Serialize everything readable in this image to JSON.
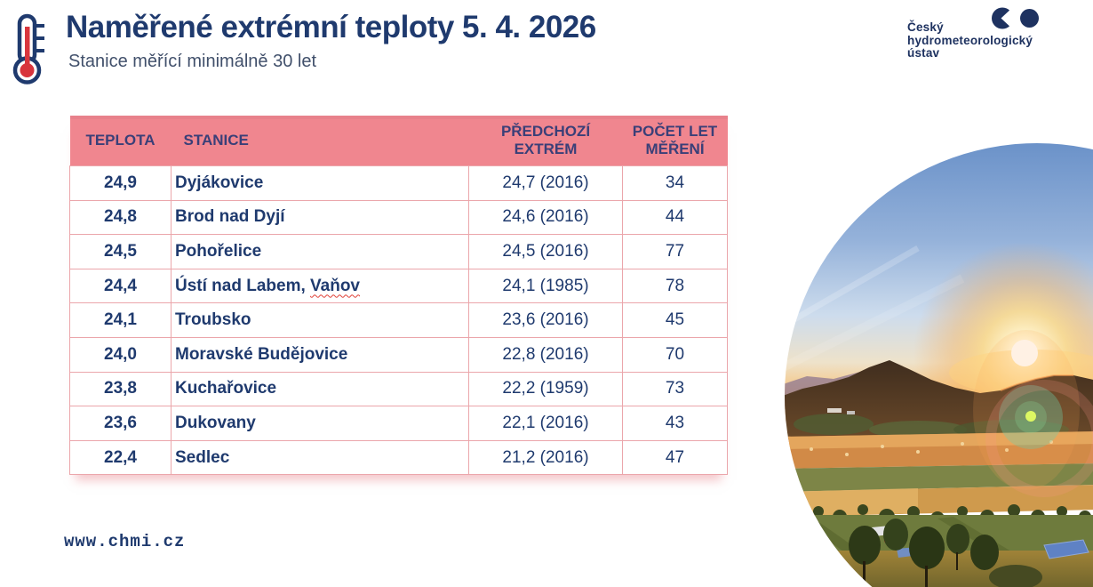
{
  "header": {
    "title": "Naměřené extrémní teploty 5. 4. 2026",
    "subtitle": "Stanice měřící minimálně 30 let"
  },
  "logo": {
    "line1": "Český",
    "line2": "hydrometeorologický",
    "line3": "ústav"
  },
  "icons": {
    "thermometer": "thermometer-icon",
    "logo_mark": "chmi-logo-mark-icon"
  },
  "colors": {
    "brand_navy": "#1f3a6e",
    "table_header_pink": "#f0868f",
    "table_border_pink": "#eba6ab",
    "thermometer_red": "#d8353d",
    "spellcheck_red": "#e04036"
  },
  "chart_data": {
    "type": "table",
    "title": "Naměřené extrémní teploty 5. 4. 2026",
    "subtitle": "Stanice měřící minimálně 30 let",
    "columns": [
      "TEPLOTA",
      "STANICE",
      "PŘEDCHOZÍ EXTRÉM",
      "POČET LET MĚŘENÍ"
    ],
    "rows": [
      {
        "teplota": "24,9",
        "stanice": "Dyjákovice",
        "predchozi_extrem": "24,7 (2016)",
        "pocet_let_mereni": "34"
      },
      {
        "teplota": "24,8",
        "stanice": "Brod nad Dyjí",
        "predchozi_extrem": "24,6 (2016)",
        "pocet_let_mereni": "44"
      },
      {
        "teplota": "24,5",
        "stanice": "Pohořelice",
        "predchozi_extrem": "24,5 (2016)",
        "pocet_let_mereni": "77"
      },
      {
        "teplota": "24,4",
        "stanice": "Ústí nad Labem, Vaňov",
        "squiggle": "Vaňov",
        "predchozi_extrem": "24,1 (1985)",
        "pocet_let_mereni": "78"
      },
      {
        "teplota": "24,1",
        "stanice": "Troubsko",
        "predchozi_extrem": "23,6 (2016)",
        "pocet_let_mereni": "45"
      },
      {
        "teplota": "24,0",
        "stanice": "Moravské Budějovice",
        "predchozi_extrem": "22,8 (2016)",
        "pocet_let_mereni": "70"
      },
      {
        "teplota": "23,8",
        "stanice": "Kuchařovice",
        "predchozi_extrem": "22,2 (1959)",
        "pocet_let_mereni": "73"
      },
      {
        "teplota": "23,6",
        "stanice": "Dukovany",
        "predchozi_extrem": "22,1 (2016)",
        "pocet_let_mereni": "43"
      },
      {
        "teplota": "22,4",
        "stanice": "Sedlec",
        "predchozi_extrem": "21,2 (2016)",
        "pocet_let_mereni": "47"
      }
    ]
  },
  "footer": {
    "url": "www.chmi.cz"
  }
}
